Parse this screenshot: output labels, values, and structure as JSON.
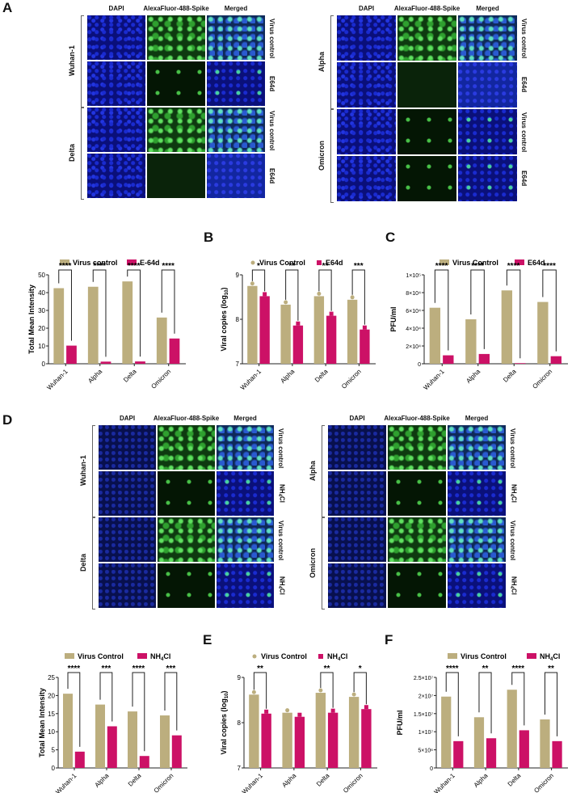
{
  "panels": {
    "A": {
      "letter": "A",
      "columns": [
        "DAPI",
        "AlexaFluor-488-Spike",
        "Merged"
      ],
      "left_block": {
        "groups": [
          "Wuhan-1",
          "Delta"
        ],
        "rows": [
          "Virus control",
          "E64d",
          "Virus control",
          "E64d"
        ]
      },
      "right_block": {
        "groups": [
          "Alpha",
          "Omicron"
        ],
        "rows": [
          "Virus control",
          "E64d",
          "Virus control",
          "E64d"
        ]
      }
    },
    "D": {
      "letter": "D",
      "columns": [
        "DAPI",
        "AlexaFluor-488-Spike",
        "Merged"
      ],
      "left_block": {
        "groups": [
          "Wuhan-1",
          "Delta"
        ],
        "rows": [
          "Virus control",
          "NH4Cl",
          "Virus control",
          "NH4Cl"
        ]
      },
      "right_block": {
        "groups": [
          "Alpha",
          "Omicron"
        ],
        "rows": [
          "Virus control",
          "NH4Cl",
          "Virus control",
          "NH4Cl"
        ]
      }
    },
    "B_letter": "B",
    "C_letter": "C",
    "E_letter": "E",
    "F_letter": "F"
  },
  "colors": {
    "control": "#bcae7e",
    "treatment": "#cc1166",
    "axis": "#222222"
  },
  "chart_data": [
    {
      "id": "A-quant",
      "type": "bar",
      "title": "",
      "categories": [
        "Wuhan-1",
        "Alpha",
        "Delta",
        "Omicron"
      ],
      "series": [
        {
          "name": "Virus control",
          "values": [
            42.5,
            43.3,
            46.3,
            26.0
          ]
        },
        {
          "name": "E-64d",
          "values": [
            10.2,
            1.2,
            1.3,
            14.2
          ]
        }
      ],
      "significance": [
        "****",
        "****",
        "****",
        "****"
      ],
      "xlabel": "",
      "ylabel": "Total Mean Intensity",
      "ylim": [
        0,
        50
      ],
      "yticks": [
        "0",
        "10",
        "20",
        "30",
        "40",
        "50"
      ],
      "legend_position": "top"
    },
    {
      "id": "B",
      "type": "bar",
      "title": "",
      "categories": [
        "Wuhan-1",
        "Alpha",
        "Delta",
        "Omicron"
      ],
      "series": [
        {
          "name": "Virus Control",
          "values": [
            8.75,
            8.33,
            8.52,
            8.44
          ]
        },
        {
          "name": "E64d",
          "values": [
            8.52,
            7.86,
            8.08,
            7.77
          ]
        }
      ],
      "significance": [
        "*",
        "**",
        "**",
        "***"
      ],
      "xlabel": "",
      "ylabel": "Viral copies (log10)",
      "ylim": [
        7,
        9
      ],
      "yticks": [
        "7",
        "8",
        "9"
      ],
      "legend_position": "top"
    },
    {
      "id": "C",
      "type": "bar",
      "title": "",
      "categories": [
        "Wuhan-1",
        "Alpha",
        "Delta",
        "Omicron"
      ],
      "series": [
        {
          "name": "Virus Control",
          "values": [
            63000,
            50000,
            82500,
            69500
          ]
        },
        {
          "name": "E64d",
          "values": [
            9500,
            11000,
            700,
            8500
          ]
        }
      ],
      "significance": [
        "****",
        "****",
        "****",
        "****"
      ],
      "xlabel": "",
      "ylabel": "PFU/ml",
      "ylim": [
        0,
        100000
      ],
      "yticks": [
        "0",
        "2×10⁴",
        "4×10⁴",
        "6×10⁴",
        "8×10⁴",
        "1×10⁵"
      ],
      "legend_position": "top"
    },
    {
      "id": "D-quant",
      "type": "bar",
      "title": "",
      "categories": [
        "Wuhan-1",
        "Alpha",
        "Delta",
        "Omicron"
      ],
      "series": [
        {
          "name": "Virus Control",
          "values": [
            20.5,
            17.5,
            15.6,
            14.5
          ]
        },
        {
          "name": "NH4Cl",
          "values": [
            4.5,
            11.5,
            3.3,
            9.0
          ]
        }
      ],
      "significance": [
        "****",
        "***",
        "****",
        "***"
      ],
      "xlabel": "",
      "ylabel": "Total Mean Intensity",
      "ylim": [
        0,
        25
      ],
      "yticks": [
        "0",
        "5",
        "10",
        "15",
        "20",
        "25"
      ],
      "legend_position": "top"
    },
    {
      "id": "E",
      "type": "bar",
      "title": "",
      "categories": [
        "Wuhan-1",
        "Alpha",
        "Delta",
        "Omicron"
      ],
      "series": [
        {
          "name": "Virus Control",
          "values": [
            8.62,
            8.22,
            8.66,
            8.57
          ]
        },
        {
          "name": "NH4Cl",
          "values": [
            8.2,
            8.13,
            8.22,
            8.3
          ]
        }
      ],
      "significance": [
        "**",
        "",
        "**",
        "*"
      ],
      "xlabel": "",
      "ylabel": "Viral copies (log10)",
      "ylim": [
        7,
        9
      ],
      "yticks": [
        "7",
        "8",
        "9"
      ],
      "legend_position": "top"
    },
    {
      "id": "F",
      "type": "bar",
      "title": "",
      "categories": [
        "Wuhan-1",
        "Alpha",
        "Delta",
        "Omicron"
      ],
      "series": [
        {
          "name": "Virus Control",
          "values": [
            19700000,
            14000000,
            21600000,
            13400000
          ]
        },
        {
          "name": "NH4Cl",
          "values": [
            7400000,
            8200000,
            10400000,
            7400000
          ]
        }
      ],
      "significance": [
        "****",
        "**",
        "****",
        "**"
      ],
      "xlabel": "",
      "ylabel": "PFU/ml",
      "ylim": [
        0,
        25000000
      ],
      "yticks": [
        "0",
        "5×10⁶",
        "1×10⁷",
        "1.5×10⁷",
        "2×10⁷",
        "2.5×10⁷"
      ],
      "legend_position": "top"
    }
  ]
}
